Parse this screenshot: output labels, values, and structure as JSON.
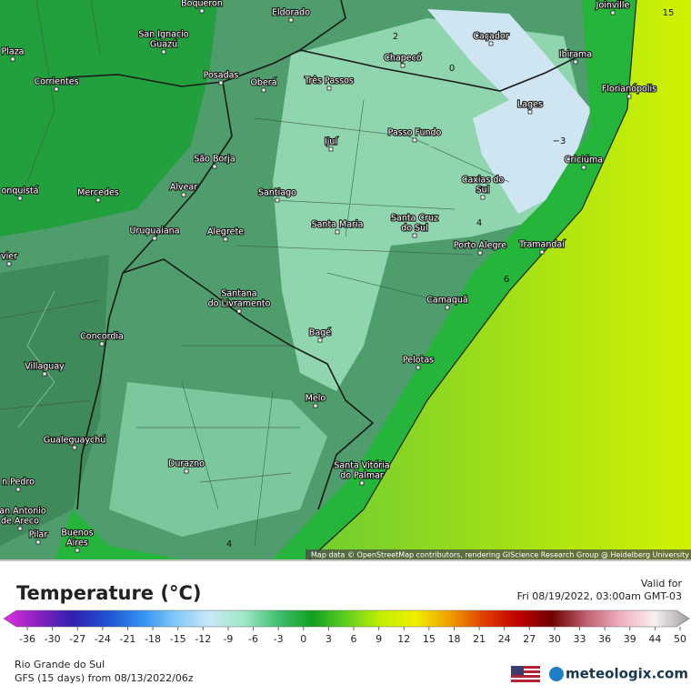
{
  "map": {
    "cities": [
      {
        "lines": [
          "Boqueron"
        ]
      },
      {
        "lines": [
          "Eldorado"
        ]
      },
      {
        "lines": [
          "Joinville"
        ]
      },
      {
        "lines": [
          "Ibirama"
        ]
      },
      {
        "lines": [
          "Caçador"
        ]
      },
      {
        "lines": [
          "Chapecó"
        ]
      },
      {
        "lines": [
          "San Ignacio",
          "Guazú"
        ]
      },
      {
        "lines": [
          "Plaza"
        ]
      },
      {
        "lines": [
          "Posadas"
        ]
      },
      {
        "lines": [
          "Oberá"
        ]
      },
      {
        "lines": [
          "Três Passos"
        ]
      },
      {
        "lines": [
          "Corrientes"
        ]
      },
      {
        "lines": [
          "Florianópolis"
        ]
      },
      {
        "lines": [
          "Lages"
        ]
      },
      {
        "lines": [
          "Passo Fundo"
        ]
      },
      {
        "lines": [
          "Ijuí"
        ]
      },
      {
        "lines": [
          "Criciúma"
        ]
      },
      {
        "lines": [
          "São Borja"
        ]
      },
      {
        "lines": [
          "Alvear"
        ]
      },
      {
        "lines": [
          "Mercedes"
        ]
      },
      {
        "lines": [
          "Santiago"
        ]
      },
      {
        "lines": [
          "Caxias do",
          "Sul"
        ]
      },
      {
        "lines": [
          "onquistá"
        ]
      },
      {
        "lines": [
          "Santa Maria"
        ]
      },
      {
        "lines": [
          "Santa Cruz",
          "do Sul"
        ]
      },
      {
        "lines": [
          "Uruguaiana"
        ]
      },
      {
        "lines": [
          "Alegrete"
        ]
      },
      {
        "lines": [
          "Porto Alegre"
        ]
      },
      {
        "lines": [
          "Tramandaí"
        ]
      },
      {
        "lines": [
          "vier"
        ]
      },
      {
        "lines": [
          "Santana",
          "do Livramento"
        ]
      },
      {
        "lines": [
          "Camaquã"
        ]
      },
      {
        "lines": [
          "Concordia"
        ]
      },
      {
        "lines": [
          "Bagé"
        ]
      },
      {
        "lines": [
          "Villaguay"
        ]
      },
      {
        "lines": [
          "Pelotas"
        ]
      },
      {
        "lines": [
          "Melo"
        ]
      },
      {
        "lines": [
          "Gualeguaychú"
        ]
      },
      {
        "lines": [
          "Durazno"
        ]
      },
      {
        "lines": [
          "Santa Vitória",
          "do Palmar"
        ]
      },
      {
        "lines": [
          "n Pedro"
        ]
      },
      {
        "lines": [
          "San Antonio",
          "de Areco"
        ]
      },
      {
        "lines": [
          "Pilar"
        ]
      },
      {
        "lines": [
          "Buenos",
          "Aires"
        ]
      }
    ],
    "contour_labels": [
      "2",
      "0",
      "−3",
      "4",
      "6",
      "15",
      "4"
    ],
    "attribution": "Map data © OpenStreetMap contributors, rendering GIScience Research Group @ Heidelberg University"
  },
  "legend": {
    "title": "Temperature (°C)",
    "valid_label": "Valid for",
    "valid_time": "Fri 08/19/2022, 03:00am GMT-03",
    "ticks": [
      -36,
      -30,
      -27,
      -24,
      -21,
      -18,
      -15,
      -12,
      -9,
      -6,
      -3,
      0,
      3,
      6,
      9,
      12,
      15,
      18,
      21,
      24,
      27,
      30,
      33,
      36,
      39,
      44,
      50
    ],
    "colors": [
      "#e030e0",
      "#8a20c0",
      "#3020b0",
      "#2050d0",
      "#3090f0",
      "#80c8f8",
      "#c8e8f8",
      "#a0e8c8",
      "#40c070",
      "#10a020",
      "#60d020",
      "#c0f000",
      "#f0f000",
      "#f0a000",
      "#e04000",
      "#c00000",
      "#700000",
      "#c06070",
      "#f0b0c0",
      "#f8f0f0",
      "#a0a0a0"
    ],
    "region": "Rio Grande do Sul",
    "model": "GFS (15 days) from 08/13/2022/06z",
    "brand": "meteologix.com"
  }
}
